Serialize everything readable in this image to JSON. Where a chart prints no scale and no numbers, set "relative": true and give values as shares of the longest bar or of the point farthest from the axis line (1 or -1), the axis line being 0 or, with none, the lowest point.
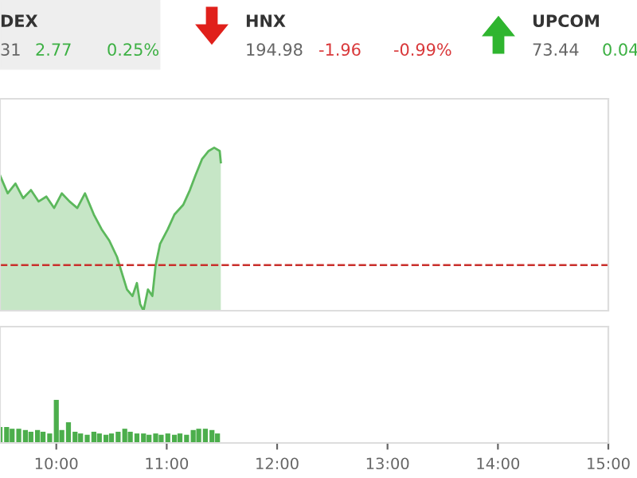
{
  "chart_data": [
    {
      "type": "other",
      "annotations": [
        "DEX",
        "31",
        "2.77",
        "0.25%",
        "HNX",
        "194.98",
        "-1.96",
        "-0.99%",
        "UPCOM",
        "73.44",
        "0.04"
      ],
      "colors": [
        "#333333",
        "#666666",
        "#3cb043",
        "#3cb043",
        "#333333",
        "#666666",
        "#d9383a",
        "#d9383a",
        "#333333",
        "#666666",
        "#3cb043"
      ]
    },
    {
      "type": "area",
      "relative": true,
      "tick_labels": false,
      "xlim": [
        9.49,
        15.0
      ],
      "series": [
        {
          "color": "#5cb85c",
          "x": [
            9.49,
            9.56,
            9.63,
            9.7,
            9.77,
            9.84,
            9.91,
            9.98,
            10.05,
            10.12,
            10.19,
            10.26,
            10.34,
            10.41,
            10.48,
            10.55,
            10.59,
            10.64,
            10.69,
            10.73,
            10.76,
            10.79,
            10.83,
            10.87,
            10.9,
            10.94,
            11.01,
            11.07,
            11.15,
            11.21,
            11.26,
            11.32,
            11.38,
            11.43,
            11.48,
            11.49
          ],
          "values": [
            0.83,
            0.72,
            0.78,
            0.69,
            0.74,
            0.67,
            0.7,
            0.63,
            0.72,
            0.67,
            0.63,
            0.72,
            0.59,
            0.5,
            0.43,
            0.33,
            0.24,
            0.13,
            0.09,
            0.17,
            0.04,
            0,
            0.13,
            0.09,
            0.28,
            0.41,
            0.5,
            0.59,
            0.65,
            0.74,
            0.83,
            0.93,
            0.98,
            1,
            0.98,
            0.91
          ]
        }
      ],
      "ref_lines": [
        {
          "axis": "y",
          "value": 0.28,
          "color": "#c9302c",
          "line_style": "dashed"
        }
      ]
    },
    {
      "type": "bar",
      "relative": true,
      "tick_labels": "x",
      "xlim": [
        9.49,
        15.0
      ],
      "xticks": [
        {
          "value": 10,
          "label": "10:00"
        },
        {
          "value": 11,
          "label": "11:00"
        },
        {
          "value": 12,
          "label": "12:00"
        },
        {
          "value": 13,
          "label": "13:00"
        },
        {
          "value": 14,
          "label": "14:00"
        },
        {
          "value": 15,
          "label": "15:00"
        }
      ],
      "x": [
        9.49,
        9.55,
        9.6,
        9.66,
        9.72,
        9.77,
        9.83,
        9.88,
        9.94,
        10.0,
        10.05,
        10.11,
        10.17,
        10.22,
        10.28,
        10.34,
        10.39,
        10.45,
        10.5,
        10.56,
        10.62,
        10.67,
        10.73,
        10.79,
        10.84,
        10.9,
        10.95,
        11.01,
        11.07,
        11.12,
        11.18,
        11.24,
        11.29,
        11.35,
        11.41,
        11.46
      ],
      "values": [
        0.37,
        0.37,
        0.33,
        0.33,
        0.3,
        0.26,
        0.3,
        0.26,
        0.22,
        1,
        0.3,
        0.48,
        0.26,
        0.22,
        0.19,
        0.26,
        0.22,
        0.19,
        0.22,
        0.26,
        0.33,
        0.26,
        0.22,
        0.22,
        0.19,
        0.22,
        0.19,
        0.22,
        0.19,
        0.22,
        0.19,
        0.3,
        0.33,
        0.33,
        0.3,
        0.22
      ],
      "color": "#4cae4c"
    }
  ]
}
